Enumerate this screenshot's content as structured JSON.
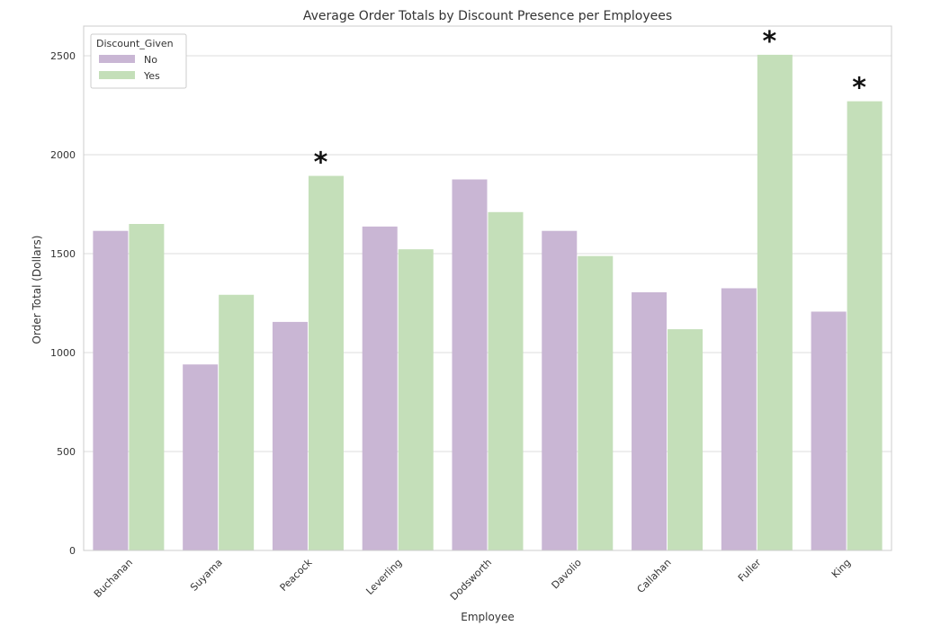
{
  "chart_data": {
    "type": "bar",
    "title": "Average Order Totals by Discount Presence per Employees",
    "xlabel": "Employee",
    "ylabel": "Order Total (Dollars)",
    "categories": [
      "Buchanan",
      "Suyama",
      "Peacock",
      "Leverling",
      "Dodsworth",
      "Davolio",
      "Callahan",
      "Fuller",
      "King"
    ],
    "ylim": [
      0,
      2650
    ],
    "yticks": [
      0,
      500,
      1000,
      1500,
      2000,
      2500
    ],
    "grid": true,
    "legend": {
      "title": "Discount_Given",
      "placement": "top-left"
    },
    "series": [
      {
        "name": "No",
        "color": "#c9b6d4",
        "values": [
          1615,
          940,
          1155,
          1637,
          1875,
          1615,
          1305,
          1325,
          1207
        ]
      },
      {
        "name": "Yes",
        "color": "#c4dfb9",
        "values": [
          1650,
          1292,
          1893,
          1522,
          1710,
          1488,
          1118,
          2505,
          2270
        ]
      }
    ],
    "annotations": [
      {
        "category": "Peacock",
        "series": "Yes",
        "text": "*"
      },
      {
        "category": "Fuller",
        "series": "Yes",
        "text": "*"
      },
      {
        "category": "King",
        "series": "Yes",
        "text": "*"
      }
    ]
  }
}
